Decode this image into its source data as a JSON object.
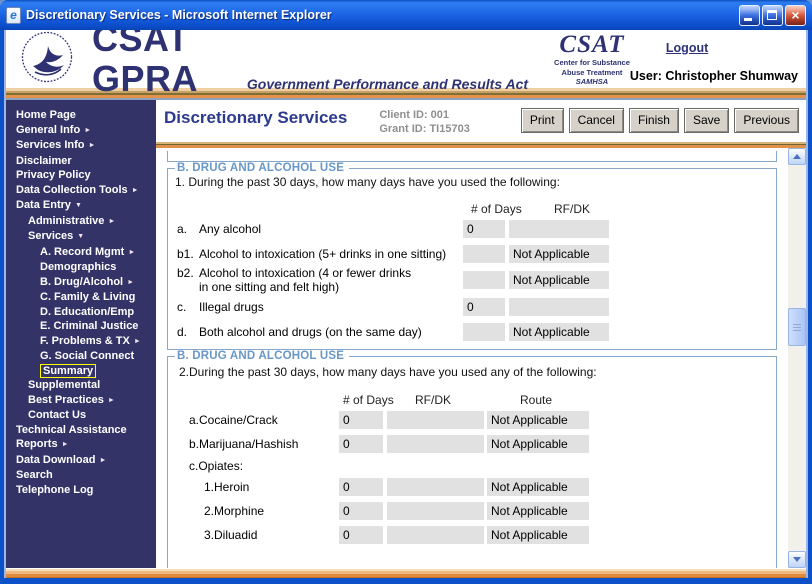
{
  "window": {
    "title": "Discretionary Services - Microsoft Internet Explorer"
  },
  "header": {
    "brand_title": "CSAT GPRA",
    "brand_subtitle": "Government Performance and Results Act",
    "csat_logo": {
      "name": "CSAT",
      "line1": "Center for Substance",
      "line2": "Abuse Treatment",
      "line3": "SAMHSA"
    },
    "logout_label": "Logout",
    "user_label": "User: Christopher Shumway"
  },
  "sidebar": {
    "items": [
      {
        "label": "Home Page",
        "indent": 0,
        "arrow": ""
      },
      {
        "label": "General Info",
        "indent": 0,
        "arrow": "right"
      },
      {
        "label": "Services Info",
        "indent": 0,
        "arrow": "right"
      },
      {
        "label": "Disclaimer",
        "indent": 0,
        "arrow": ""
      },
      {
        "label": "Privacy Policy",
        "indent": 0,
        "arrow": ""
      },
      {
        "label": "Data Collection Tools",
        "indent": 0,
        "arrow": "right"
      },
      {
        "label": "Data Entry",
        "indent": 0,
        "arrow": "down"
      },
      {
        "label": "Administrative",
        "indent": 1,
        "arrow": "right"
      },
      {
        "label": "Services",
        "indent": 1,
        "arrow": "down"
      },
      {
        "label": "A. Record Mgmt",
        "indent": 2,
        "arrow": "right"
      },
      {
        "label": "Demographics",
        "indent": 2,
        "arrow": ""
      },
      {
        "label": "B. Drug/Alcohol",
        "indent": 2,
        "arrow": "right"
      },
      {
        "label": "C. Family & Living",
        "indent": 2,
        "arrow": ""
      },
      {
        "label": "D. Education/Emp",
        "indent": 2,
        "arrow": ""
      },
      {
        "label": "E. Criminal Justice",
        "indent": 2,
        "arrow": ""
      },
      {
        "label": "F. Problems & TX",
        "indent": 2,
        "arrow": "right"
      },
      {
        "label": "G. Social Connect",
        "indent": 2,
        "arrow": ""
      },
      {
        "label": "Summary",
        "indent": 2,
        "arrow": "",
        "selected": true
      },
      {
        "label": "Supplemental",
        "indent": 1,
        "arrow": ""
      },
      {
        "label": "Best Practices",
        "indent": 1,
        "arrow": "right"
      },
      {
        "label": "Contact Us",
        "indent": 1,
        "arrow": ""
      },
      {
        "label": "Technical Assistance",
        "indent": 0,
        "arrow": ""
      },
      {
        "label": "Reports",
        "indent": 0,
        "arrow": "right"
      },
      {
        "label": "Data Download",
        "indent": 0,
        "arrow": "right"
      },
      {
        "label": "Search",
        "indent": 0,
        "arrow": ""
      },
      {
        "label": "Telephone Log",
        "indent": 0,
        "arrow": ""
      }
    ]
  },
  "content": {
    "page_title": "Discretionary Services",
    "client_id": "Client ID: 001",
    "grant_id": "Grant ID: TI15703",
    "toolbar": {
      "buttons": [
        "Print",
        "Cancel",
        "Finish",
        "Save",
        "Previous"
      ]
    },
    "sections": [
      {
        "legend": "B. DRUG AND ALCOHOL USE",
        "question": "1. During the past 30 days, how many days have you used the following:",
        "columns": [
          "# of Days",
          "RF/DK"
        ],
        "rows": [
          {
            "prefix": "a.",
            "text": "Any alcohol",
            "days": "0",
            "rfdk": ""
          },
          {
            "prefix": "b1.",
            "text": "Alcohol to intoxication (5+ drinks in one sitting)",
            "days": "",
            "rfdk": "Not Applicable"
          },
          {
            "prefix": "b2.",
            "text": "Alcohol to intoxication (4 or fewer drinks\nin one sitting and felt high)",
            "days": "",
            "rfdk": "Not Applicable"
          },
          {
            "prefix": "c.",
            "text": "Illegal drugs",
            "days": "0",
            "rfdk": ""
          },
          {
            "prefix": "d.",
            "text": "Both alcohol and drugs (on the same day)",
            "days": "",
            "rfdk": "Not Applicable"
          }
        ]
      },
      {
        "legend": "B. DRUG AND ALCOHOL USE",
        "question": "2.During the past 30 days, how many days have you used any of the following:",
        "columns": [
          "# of Days",
          "RF/DK",
          "Route"
        ],
        "rows": [
          {
            "label": "a.Cocaine/Crack",
            "days": "0",
            "rfdk": "",
            "route": "Not Applicable",
            "indent": 0
          },
          {
            "label": "b.Marijuana/Hashish",
            "days": "0",
            "rfdk": "",
            "route": "Not Applicable",
            "indent": 0
          },
          {
            "label": "c.Opiates:",
            "group": true,
            "indent": 0
          },
          {
            "label": "1.Heroin",
            "days": "0",
            "rfdk": "",
            "route": "Not Applicable",
            "indent": 1
          },
          {
            "label": "2.Morphine",
            "days": "0",
            "rfdk": "",
            "route": "Not Applicable",
            "indent": 1
          },
          {
            "label": "3.Diluadid",
            "days": "0",
            "rfdk": "",
            "route": "Not Applicable",
            "indent": 1
          }
        ]
      }
    ]
  },
  "colors": {
    "sidebar_navy": "#333367",
    "brand_navy": "#2e3272",
    "legend_blue": "#6897c7",
    "fieldset_border": "#87a8ca",
    "field_gray": "#e1e1e1",
    "highlight_yellow": "#ffff00",
    "stripe_orange": "#e6914b"
  }
}
